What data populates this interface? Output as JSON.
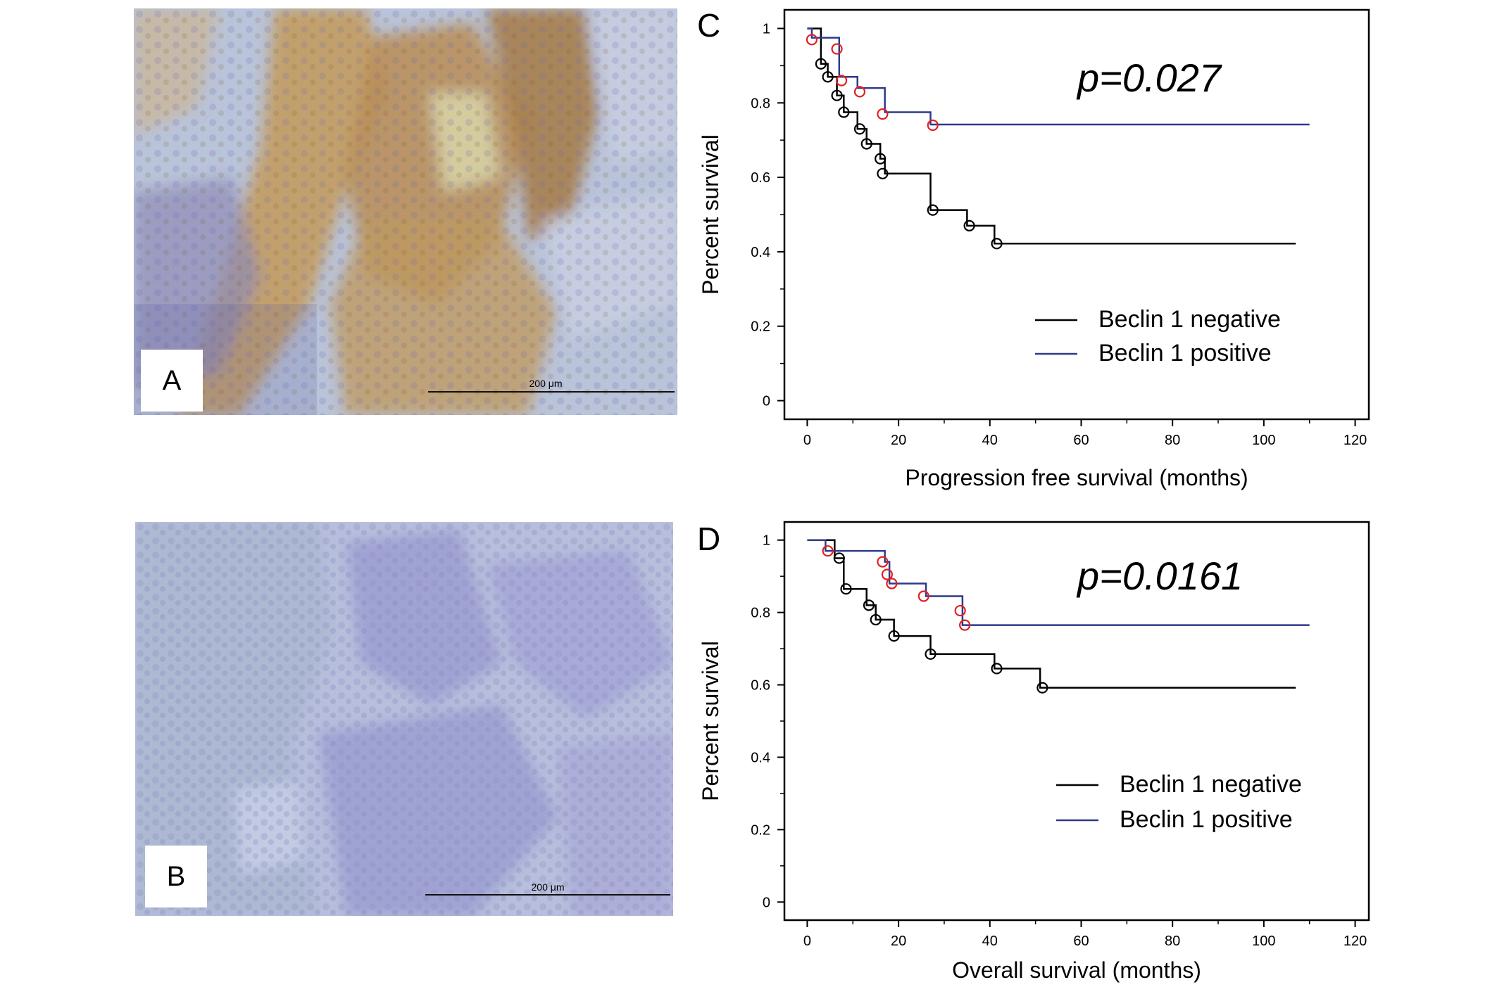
{
  "figure": {
    "panels": [
      {
        "id": "A",
        "label": "A",
        "scale_bar": "200 μm"
      },
      {
        "id": "B",
        "label": "B",
        "scale_bar": "200 μm"
      }
    ]
  },
  "chart_data": [
    {
      "type": "line",
      "panel_label": "C",
      "annotation": "p=0.027",
      "xlabel": "Progression free survival  (months)",
      "ylabel": "Percent survival",
      "xlim": [
        -5,
        123
      ],
      "ylim": [
        -0.05,
        1.05
      ],
      "x_ticks": [
        0,
        20,
        40,
        60,
        80,
        100,
        120
      ],
      "y_ticks": [
        0,
        0.2,
        0.4,
        0.6,
        0.8,
        1
      ],
      "legend_position": "bottom-right",
      "series": [
        {
          "name": "Beclin 1 negative",
          "color": "#000000",
          "steps": [
            [
              0,
              1
            ],
            [
              3,
              0.905
            ],
            [
              4.5,
              0.87
            ],
            [
              6.5,
              0.82
            ],
            [
              8,
              0.775
            ],
            [
              11,
              0.73
            ],
            [
              13,
              0.69
            ],
            [
              16,
              0.65
            ],
            [
              17,
              0.61
            ],
            [
              27,
              0.512
            ],
            [
              35,
              0.47
            ],
            [
              41,
              0.422
            ],
            [
              107,
              0.422
            ]
          ],
          "censored": [
            [
              3,
              0.905
            ],
            [
              4.5,
              0.87
            ],
            [
              6.5,
              0.82
            ],
            [
              8,
              0.775
            ],
            [
              11.5,
              0.73
            ],
            [
              13,
              0.69
            ],
            [
              16,
              0.65
            ],
            [
              16.5,
              0.61
            ],
            [
              27.5,
              0.512
            ],
            [
              35.5,
              0.47
            ],
            [
              41.5,
              0.422
            ]
          ]
        },
        {
          "name": "Beclin 1 positive",
          "color": "#2e3a8c",
          "steps": [
            [
              0,
              1
            ],
            [
              1,
              0.975
            ],
            [
              7,
              0.87
            ],
            [
              11,
              0.84
            ],
            [
              17,
              0.775
            ],
            [
              27,
              0.742
            ],
            [
              110,
              0.742
            ]
          ],
          "censored": [
            [
              1,
              0.97
            ],
            [
              6.5,
              0.945
            ],
            [
              7.5,
              0.86
            ],
            [
              11.5,
              0.83
            ],
            [
              16.5,
              0.77
            ],
            [
              27.5,
              0.74
            ]
          ]
        }
      ]
    },
    {
      "type": "line",
      "panel_label": "D",
      "annotation": "p=0.0161",
      "xlabel": "Overall survival  (months)",
      "ylabel": "Percent survival",
      "xlim": [
        -5,
        123
      ],
      "ylim": [
        -0.05,
        1.05
      ],
      "x_ticks": [
        0,
        20,
        40,
        60,
        80,
        100,
        120
      ],
      "y_ticks": [
        0,
        0.2,
        0.4,
        0.6,
        0.8,
        1
      ],
      "legend_position": "bottom-right",
      "series": [
        {
          "name": "Beclin 1 negative",
          "color": "#000000",
          "steps": [
            [
              0,
              1
            ],
            [
              6,
              0.95
            ],
            [
              8,
              0.865
            ],
            [
              13,
              0.82
            ],
            [
              15,
              0.78
            ],
            [
              19,
              0.735
            ],
            [
              27,
              0.685
            ],
            [
              41,
              0.645
            ],
            [
              51,
              0.592
            ],
            [
              107,
              0.592
            ]
          ],
          "censored": [
            [
              7,
              0.95
            ],
            [
              8.5,
              0.865
            ],
            [
              13.5,
              0.82
            ],
            [
              15,
              0.78
            ],
            [
              19,
              0.735
            ],
            [
              27,
              0.685
            ],
            [
              41.5,
              0.645
            ],
            [
              51.5,
              0.592
            ]
          ]
        },
        {
          "name": "Beclin 1 positive",
          "color": "#2e3a8c",
          "steps": [
            [
              0,
              1
            ],
            [
              4,
              0.97
            ],
            [
              17,
              0.94
            ],
            [
              18,
              0.88
            ],
            [
              26,
              0.845
            ],
            [
              34,
              0.765
            ],
            [
              110,
              0.765
            ]
          ],
          "censored": [
            [
              4.5,
              0.97
            ],
            [
              16.5,
              0.94
            ],
            [
              17.5,
              0.905
            ],
            [
              18.5,
              0.88
            ],
            [
              25.5,
              0.845
            ],
            [
              33.5,
              0.805
            ],
            [
              34.5,
              0.765
            ]
          ]
        }
      ]
    }
  ]
}
